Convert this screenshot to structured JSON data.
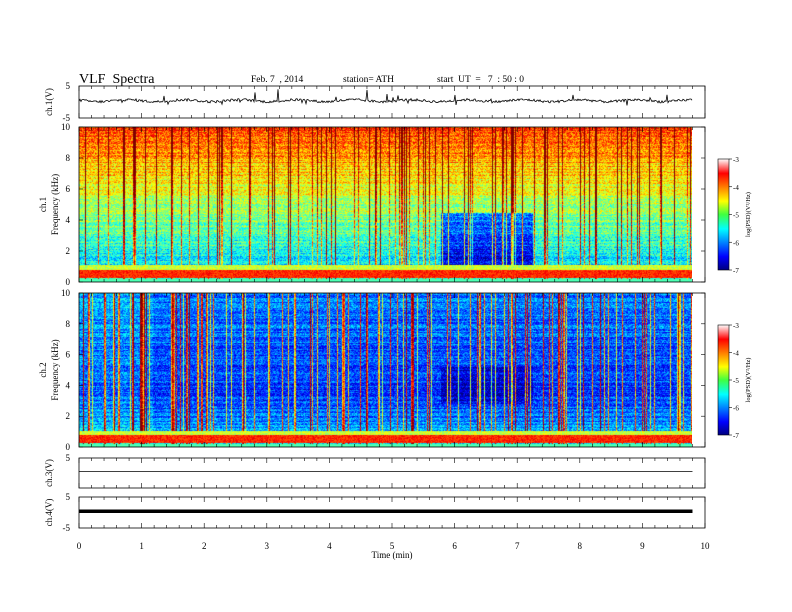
{
  "header": {
    "title": "VLF  Spectra",
    "date": "Feb. 7  , 2014",
    "station": "station= ATH",
    "start": "start  UT  =   7  : 50 : 0"
  },
  "chart_data": [
    {
      "type": "line",
      "panel": "ch1-waveform",
      "ylabel": "ch.1(V)",
      "y_ticks": [
        "5",
        "-5"
      ],
      "ylim": [
        -5,
        5
      ],
      "x_range_min": [
        0,
        9.8
      ],
      "description_values": "noisy waveform near +0.3 V with sporadic spikes"
    },
    {
      "type": "heatmap",
      "panel": "ch1-spectrogram",
      "ylabel": "ch.1\nFrequency  (kHz)",
      "ylabel_lines": [
        "ch.1",
        "Frequency  (kHz)"
      ],
      "y_ticks": [
        "0",
        "2",
        "4",
        "6",
        "8",
        "10"
      ],
      "ylim": [
        0,
        10
      ],
      "colorbar": {
        "label": "log(PSD)(V²/Hz)",
        "ticks": [
          "-3",
          "-4",
          "-5",
          "-6",
          "-7"
        ],
        "range": [
          -7,
          -3
        ]
      }
    },
    {
      "type": "heatmap",
      "panel": "ch2-spectrogram",
      "ylabel_lines": [
        "ch.2",
        "Frequency  (kHz)"
      ],
      "y_ticks": [
        "0",
        "2",
        "4",
        "6",
        "8",
        "10"
      ],
      "ylim": [
        0,
        10
      ],
      "colorbar": {
        "label": "log(PSD)(V²/Hz)",
        "ticks": [
          "-3",
          "-4",
          "-5",
          "-6",
          "-7"
        ],
        "range": [
          -7,
          -3
        ]
      }
    },
    {
      "type": "line",
      "panel": "ch3-waveform",
      "ylabel": "ch.3(V)",
      "y_ticks": [
        "5"
      ],
      "ylim": [
        -5,
        5
      ]
    },
    {
      "type": "line",
      "panel": "ch4-waveform",
      "ylabel": "ch.4(V)",
      "y_ticks": [
        "5",
        "-5"
      ],
      "ylim": [
        -5,
        5
      ]
    }
  ],
  "x_axis": {
    "label": "Time  (min)",
    "ticks": [
      "0",
      "1",
      "2",
      "3",
      "4",
      "5",
      "6",
      "7",
      "8",
      "9",
      "10"
    ],
    "range": [
      0,
      10
    ]
  },
  "colors": {
    "jet_dark": "#00007f",
    "jet_blue": "#0000ff",
    "jet_cyan": "#00ffff",
    "jet_green": "#40ff40",
    "jet_yellow": "#ffff00",
    "jet_red": "#ff0000"
  }
}
